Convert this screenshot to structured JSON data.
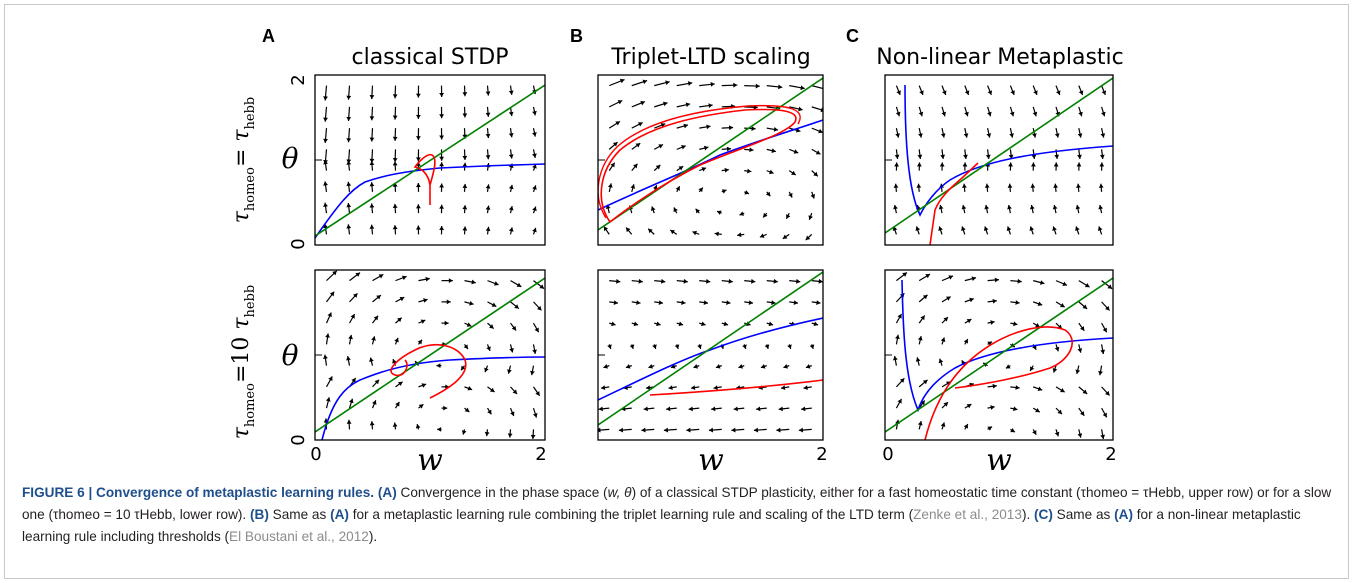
{
  "figure": {
    "panels": [
      {
        "letter": "A",
        "title": "classical STDP"
      },
      {
        "letter": "B",
        "title": "Triplet-LTD scaling"
      },
      {
        "letter": "C",
        "title": "Non-linear Metaplastic"
      }
    ],
    "row_labels": {
      "top": {
        "tau": "τ",
        "sub1": "homeo",
        "eq": "= ",
        "tau2": "τ",
        "sub2": "hebb"
      },
      "bottom": {
        "tau": "τ",
        "sub1": "homeo",
        "eq": "=10 ",
        "tau2": "τ",
        "sub2": "hebb"
      }
    },
    "y_axis_symbol": "θ",
    "x_axis_symbol": "w",
    "y_ticks": [
      "0",
      "2"
    ],
    "x_ticks": [
      "0",
      "2"
    ]
  },
  "chart_data": {
    "type": "phase-plot",
    "x_range": [
      0,
      2
    ],
    "y_range": [
      0,
      2
    ],
    "line_colors": {
      "nullcline_w": "#0000ff",
      "nullcline_theta": "#008000",
      "trajectory": "#ff0000",
      "arrows": "#000000"
    }
  },
  "caption": {
    "label": "FIGURE 6 | Convergence of metaplastic learning rules.",
    "a_tag": "(A)",
    "a_text_1": " Convergence in the phase space (",
    "a_sym": "w, θ",
    "a_text_2": ") of a classical STDP plasticity, either for a fast homeostatic time constant (τhomeo = τHebb, upper row) or for a slow one (τhomeo = 10 τHebb, lower row). ",
    "b_tag": "(B)",
    "b_text_1": " Same as ",
    "b_ref_tag": "(A)",
    "b_text_2": " for a metaplastic learning rule combining the triplet learning rule and scaling of the LTD term (",
    "b_cite": "Zenke et al., 2013",
    "b_text_3": "). ",
    "c_tag": "(C)",
    "c_text_1": " Same as ",
    "c_ref_tag": "(A)",
    "c_text_2": " for a non-linear metaplastic learning rule including thresholds (",
    "c_cite": "El Boustani et al., 2012",
    "c_text_3": ")."
  }
}
